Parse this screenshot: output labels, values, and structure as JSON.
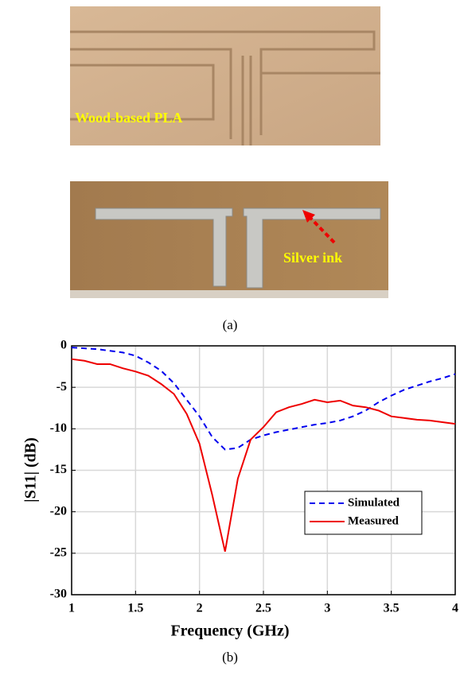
{
  "photos": {
    "top_label": "Wood-based PLA",
    "bottom_label": "Silver ink",
    "caption": "(a)"
  },
  "chart_data": {
    "type": "line",
    "caption": "(b)",
    "xlabel": "Frequency (GHz)",
    "ylabel": "|S11| (dB)",
    "x": [
      1,
      1.1,
      1.2,
      1.3,
      1.4,
      1.5,
      1.6,
      1.7,
      1.8,
      1.9,
      2,
      2.1,
      2.2,
      2.3,
      2.4,
      2.5,
      2.6,
      2.7,
      2.8,
      2.9,
      3,
      3.1,
      3.2,
      3.3,
      3.4,
      3.5,
      3.6,
      3.7,
      3.8,
      3.9,
      4
    ],
    "series": [
      {
        "name": "Simulated",
        "color": "#0000ee",
        "dashed": true,
        "values": [
          -0.2,
          -0.3,
          -0.4,
          -0.6,
          -0.8,
          -1.2,
          -2,
          -3,
          -4.5,
          -6.5,
          -8.5,
          -11,
          -12.5,
          -12.3,
          -11.3,
          -10.8,
          -10.4,
          -10.1,
          -9.8,
          -9.5,
          -9.3,
          -9,
          -8.5,
          -7.8,
          -6.8,
          -6,
          -5.3,
          -4.8,
          -4.3,
          -3.9,
          -3.4
        ]
      },
      {
        "name": "Measured",
        "color": "#ee0000",
        "dashed": false,
        "values": [
          -1.6,
          -1.8,
          -2.2,
          -2.2,
          -2.7,
          -3.1,
          -3.6,
          -4.6,
          -5.8,
          -8.2,
          -11.8,
          -18,
          -24.8,
          -16,
          -11.3,
          -9.8,
          -8,
          -7.4,
          -7,
          -6.5,
          -6.8,
          -6.6,
          -7.2,
          -7.4,
          -7.8,
          -8.5,
          -8.7,
          -8.9,
          -9,
          -9.2,
          -9.4
        ]
      }
    ],
    "xlim": [
      1,
      4
    ],
    "xticks": [
      1,
      1.5,
      2,
      2.5,
      3,
      3.5,
      4
    ],
    "ylim": [
      -30,
      0
    ],
    "yticks": [
      0,
      -5,
      -10,
      -15,
      -20,
      -25,
      -30
    ],
    "grid": true,
    "legend": "lower-right"
  }
}
